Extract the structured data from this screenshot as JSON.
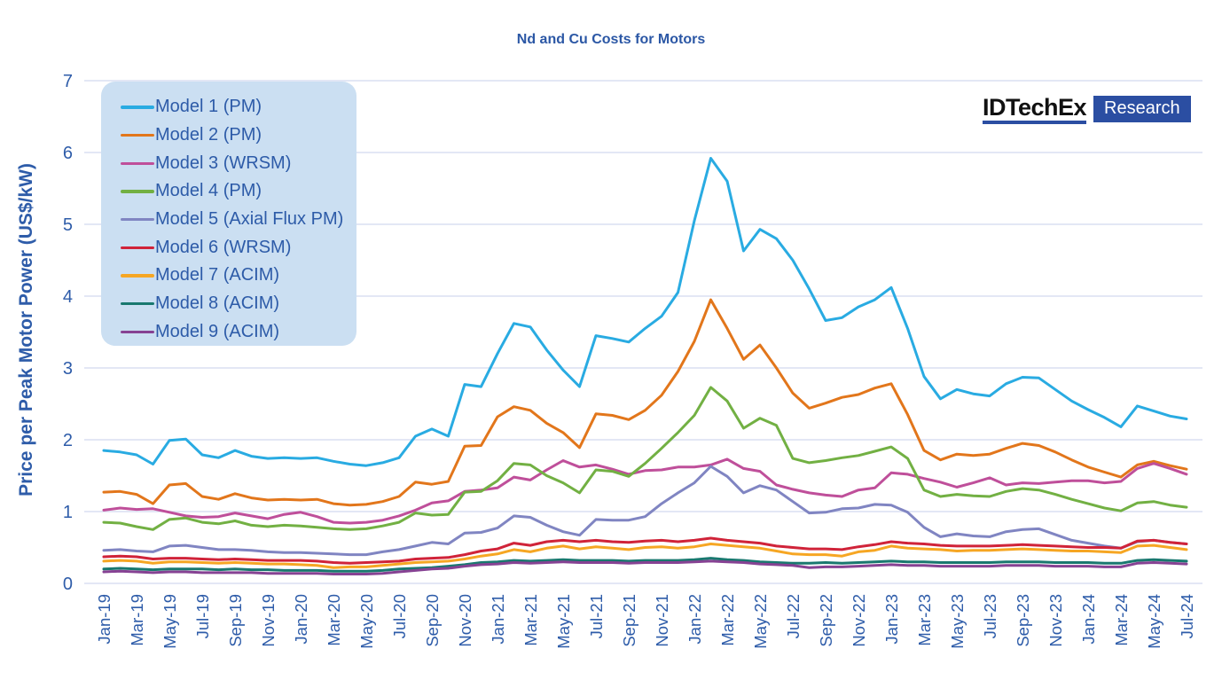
{
  "header": {
    "title": "Nd and Cu Costs for Motors"
  },
  "logo": {
    "brand": "IDTechEx",
    "product": "Research"
  },
  "colors": {
    "text_blue": "#2e5ca9",
    "title_blue": "#2b57a5",
    "legend_bg": "#cbdff2",
    "logo_blue": "#2b4ea2",
    "gridline": "#e3e7f5"
  },
  "chart_data": {
    "type": "line",
    "title": "Nd and Cu Costs for Motors",
    "xlabel": "",
    "ylabel": "Price per Peak Motor Power (US$/kW)",
    "ylim": [
      0,
      7
    ],
    "yticks": [
      0,
      1,
      2,
      3,
      4,
      5,
      6,
      7
    ],
    "grid": "horizontal",
    "legend_position": "top-left-inside",
    "x_tick_interval": 2,
    "x": [
      "Jan-19",
      "Feb-19",
      "Mar-19",
      "Apr-19",
      "May-19",
      "Jun-19",
      "Jul-19",
      "Aug-19",
      "Sep-19",
      "Oct-19",
      "Nov-19",
      "Dec-19",
      "Jan-20",
      "Feb-20",
      "Mar-20",
      "Apr-20",
      "May-20",
      "Jun-20",
      "Jul-20",
      "Aug-20",
      "Sep-20",
      "Oct-20",
      "Nov-20",
      "Dec-20",
      "Jan-21",
      "Feb-21",
      "Mar-21",
      "Apr-21",
      "May-21",
      "Jun-21",
      "Jul-21",
      "Aug-21",
      "Sep-21",
      "Oct-21",
      "Nov-21",
      "Dec-21",
      "Jan-22",
      "Feb-22",
      "Mar-22",
      "Apr-22",
      "May-22",
      "Jun-22",
      "Jul-22",
      "Aug-22",
      "Sep-22",
      "Oct-22",
      "Nov-22",
      "Dec-22",
      "Jan-23",
      "Feb-23",
      "Mar-23",
      "Apr-23",
      "May-23",
      "Jun-23",
      "Jul-23",
      "Aug-23",
      "Sep-23",
      "Oct-23",
      "Nov-23",
      "Dec-23",
      "Jan-24",
      "Feb-24",
      "Mar-24",
      "Apr-24",
      "May-24",
      "Jun-24",
      "Jul-24"
    ],
    "series": [
      {
        "name": "Model 1 (PM)",
        "color": "#29abe2",
        "values": [
          1.85,
          1.83,
          1.79,
          1.66,
          1.99,
          2.01,
          1.79,
          1.75,
          1.85,
          1.77,
          1.74,
          1.75,
          1.74,
          1.75,
          1.7,
          1.66,
          1.64,
          1.68,
          1.75,
          2.05,
          2.15,
          2.05,
          2.77,
          2.74,
          3.2,
          3.62,
          3.57,
          3.25,
          2.97,
          2.74,
          3.45,
          3.41,
          3.36,
          3.55,
          3.72,
          4.05,
          5.05,
          5.92,
          5.6,
          4.63,
          4.93,
          4.8,
          4.5,
          4.1,
          3.66,
          3.7,
          3.85,
          3.95,
          4.12,
          3.55,
          2.88,
          2.57,
          2.7,
          2.64,
          2.61,
          2.78,
          2.87,
          2.86,
          2.7,
          2.54,
          2.42,
          2.31,
          2.18,
          2.47,
          2.4,
          2.33,
          2.29
        ]
      },
      {
        "name": "Model 2 (PM)",
        "color": "#e2761b",
        "values": [
          1.27,
          1.28,
          1.24,
          1.11,
          1.37,
          1.39,
          1.21,
          1.17,
          1.25,
          1.19,
          1.16,
          1.17,
          1.16,
          1.17,
          1.11,
          1.09,
          1.1,
          1.14,
          1.21,
          1.41,
          1.38,
          1.42,
          1.91,
          1.92,
          2.32,
          2.46,
          2.41,
          2.23,
          2.1,
          1.89,
          2.36,
          2.34,
          2.28,
          2.41,
          2.62,
          2.95,
          3.37,
          3.95,
          3.55,
          3.12,
          3.32,
          3.0,
          2.65,
          2.44,
          2.51,
          2.59,
          2.63,
          2.72,
          2.78,
          2.35,
          1.85,
          1.72,
          1.8,
          1.78,
          1.8,
          1.88,
          1.95,
          1.92,
          1.83,
          1.72,
          1.62,
          1.55,
          1.48,
          1.65,
          1.7,
          1.64,
          1.59
        ]
      },
      {
        "name": "Model 3 (WRSM)",
        "color": "#bf4f9a",
        "values": [
          1.02,
          1.05,
          1.03,
          1.04,
          0.99,
          0.94,
          0.92,
          0.93,
          0.98,
          0.94,
          0.9,
          0.96,
          0.99,
          0.93,
          0.85,
          0.84,
          0.85,
          0.88,
          0.94,
          1.02,
          1.12,
          1.15,
          1.28,
          1.3,
          1.33,
          1.48,
          1.44,
          1.58,
          1.71,
          1.62,
          1.65,
          1.59,
          1.52,
          1.57,
          1.58,
          1.62,
          1.62,
          1.65,
          1.73,
          1.6,
          1.56,
          1.37,
          1.31,
          1.26,
          1.23,
          1.21,
          1.3,
          1.33,
          1.54,
          1.52,
          1.46,
          1.41,
          1.34,
          1.4,
          1.47,
          1.37,
          1.4,
          1.39,
          1.41,
          1.43,
          1.43,
          1.4,
          1.42,
          1.6,
          1.67,
          1.6,
          1.52
        ]
      },
      {
        "name": "Model 4 (PM)",
        "color": "#72b043",
        "values": [
          0.85,
          0.84,
          0.79,
          0.75,
          0.89,
          0.91,
          0.85,
          0.83,
          0.87,
          0.81,
          0.79,
          0.81,
          0.8,
          0.78,
          0.76,
          0.75,
          0.76,
          0.8,
          0.85,
          0.98,
          0.95,
          0.96,
          1.27,
          1.28,
          1.43,
          1.67,
          1.65,
          1.5,
          1.4,
          1.26,
          1.58,
          1.56,
          1.49,
          1.67,
          1.88,
          2.1,
          2.34,
          2.73,
          2.54,
          2.16,
          2.3,
          2.2,
          1.74,
          1.68,
          1.71,
          1.75,
          1.78,
          1.84,
          1.9,
          1.74,
          1.3,
          1.21,
          1.24,
          1.22,
          1.21,
          1.28,
          1.32,
          1.3,
          1.24,
          1.17,
          1.11,
          1.05,
          1.01,
          1.12,
          1.14,
          1.09,
          1.06
        ]
      },
      {
        "name": "Model 5 (Axial Flux PM)",
        "color": "#8085c2",
        "values": [
          0.46,
          0.47,
          0.45,
          0.44,
          0.52,
          0.53,
          0.5,
          0.47,
          0.47,
          0.46,
          0.44,
          0.43,
          0.43,
          0.42,
          0.41,
          0.4,
          0.4,
          0.44,
          0.47,
          0.52,
          0.57,
          0.55,
          0.7,
          0.71,
          0.77,
          0.94,
          0.92,
          0.81,
          0.72,
          0.67,
          0.89,
          0.88,
          0.88,
          0.93,
          1.11,
          1.26,
          1.4,
          1.63,
          1.49,
          1.26,
          1.36,
          1.3,
          1.14,
          0.98,
          0.99,
          1.04,
          1.05,
          1.1,
          1.09,
          0.99,
          0.78,
          0.65,
          0.69,
          0.66,
          0.65,
          0.72,
          0.75,
          0.76,
          0.68,
          0.6,
          0.56,
          0.52,
          0.49,
          0.58,
          0.6,
          0.57,
          0.55
        ]
      },
      {
        "name": "Model 6 (WRSM)",
        "color": "#d02339",
        "values": [
          0.37,
          0.38,
          0.37,
          0.34,
          0.35,
          0.35,
          0.34,
          0.33,
          0.34,
          0.33,
          0.32,
          0.32,
          0.32,
          0.31,
          0.29,
          0.28,
          0.29,
          0.3,
          0.31,
          0.34,
          0.35,
          0.36,
          0.4,
          0.45,
          0.48,
          0.56,
          0.53,
          0.58,
          0.6,
          0.58,
          0.6,
          0.58,
          0.57,
          0.59,
          0.6,
          0.58,
          0.6,
          0.63,
          0.6,
          0.58,
          0.56,
          0.52,
          0.5,
          0.48,
          0.48,
          0.47,
          0.51,
          0.54,
          0.58,
          0.56,
          0.55,
          0.53,
          0.52,
          0.52,
          0.52,
          0.53,
          0.54,
          0.53,
          0.52,
          0.51,
          0.5,
          0.5,
          0.49,
          0.59,
          0.6,
          0.57,
          0.55
        ]
      },
      {
        "name": "Model 7 (ACIM)",
        "color": "#f6a623",
        "values": [
          0.31,
          0.32,
          0.31,
          0.28,
          0.3,
          0.3,
          0.29,
          0.28,
          0.29,
          0.28,
          0.27,
          0.27,
          0.26,
          0.25,
          0.22,
          0.23,
          0.23,
          0.25,
          0.27,
          0.29,
          0.3,
          0.31,
          0.34,
          0.38,
          0.41,
          0.47,
          0.44,
          0.49,
          0.52,
          0.48,
          0.51,
          0.49,
          0.47,
          0.5,
          0.51,
          0.49,
          0.51,
          0.55,
          0.53,
          0.51,
          0.49,
          0.45,
          0.41,
          0.4,
          0.4,
          0.38,
          0.44,
          0.46,
          0.52,
          0.49,
          0.48,
          0.47,
          0.45,
          0.46,
          0.46,
          0.47,
          0.48,
          0.47,
          0.46,
          0.45,
          0.45,
          0.44,
          0.43,
          0.52,
          0.53,
          0.5,
          0.47
        ]
      },
      {
        "name": "Model 8 (ACIM)",
        "color": "#19786f",
        "values": [
          0.2,
          0.21,
          0.2,
          0.19,
          0.2,
          0.2,
          0.2,
          0.19,
          0.2,
          0.19,
          0.19,
          0.18,
          0.18,
          0.18,
          0.17,
          0.17,
          0.17,
          0.18,
          0.2,
          0.21,
          0.22,
          0.24,
          0.26,
          0.29,
          0.3,
          0.32,
          0.31,
          0.32,
          0.33,
          0.32,
          0.32,
          0.32,
          0.31,
          0.32,
          0.32,
          0.32,
          0.33,
          0.35,
          0.33,
          0.32,
          0.3,
          0.29,
          0.28,
          0.28,
          0.29,
          0.28,
          0.29,
          0.3,
          0.31,
          0.3,
          0.3,
          0.29,
          0.29,
          0.29,
          0.29,
          0.3,
          0.3,
          0.3,
          0.29,
          0.29,
          0.29,
          0.28,
          0.28,
          0.32,
          0.33,
          0.32,
          0.31
        ]
      },
      {
        "name": "Model 9 (ACIM)",
        "color": "#864293",
        "values": [
          0.16,
          0.17,
          0.16,
          0.15,
          0.16,
          0.16,
          0.15,
          0.15,
          0.15,
          0.15,
          0.14,
          0.14,
          0.14,
          0.14,
          0.13,
          0.13,
          0.13,
          0.14,
          0.16,
          0.18,
          0.2,
          0.21,
          0.24,
          0.26,
          0.27,
          0.29,
          0.28,
          0.29,
          0.3,
          0.29,
          0.29,
          0.29,
          0.28,
          0.29,
          0.29,
          0.29,
          0.3,
          0.31,
          0.3,
          0.29,
          0.27,
          0.26,
          0.25,
          0.22,
          0.23,
          0.23,
          0.24,
          0.25,
          0.26,
          0.25,
          0.25,
          0.24,
          0.24,
          0.24,
          0.24,
          0.25,
          0.25,
          0.25,
          0.24,
          0.24,
          0.24,
          0.23,
          0.23,
          0.28,
          0.29,
          0.28,
          0.27
        ]
      }
    ]
  }
}
